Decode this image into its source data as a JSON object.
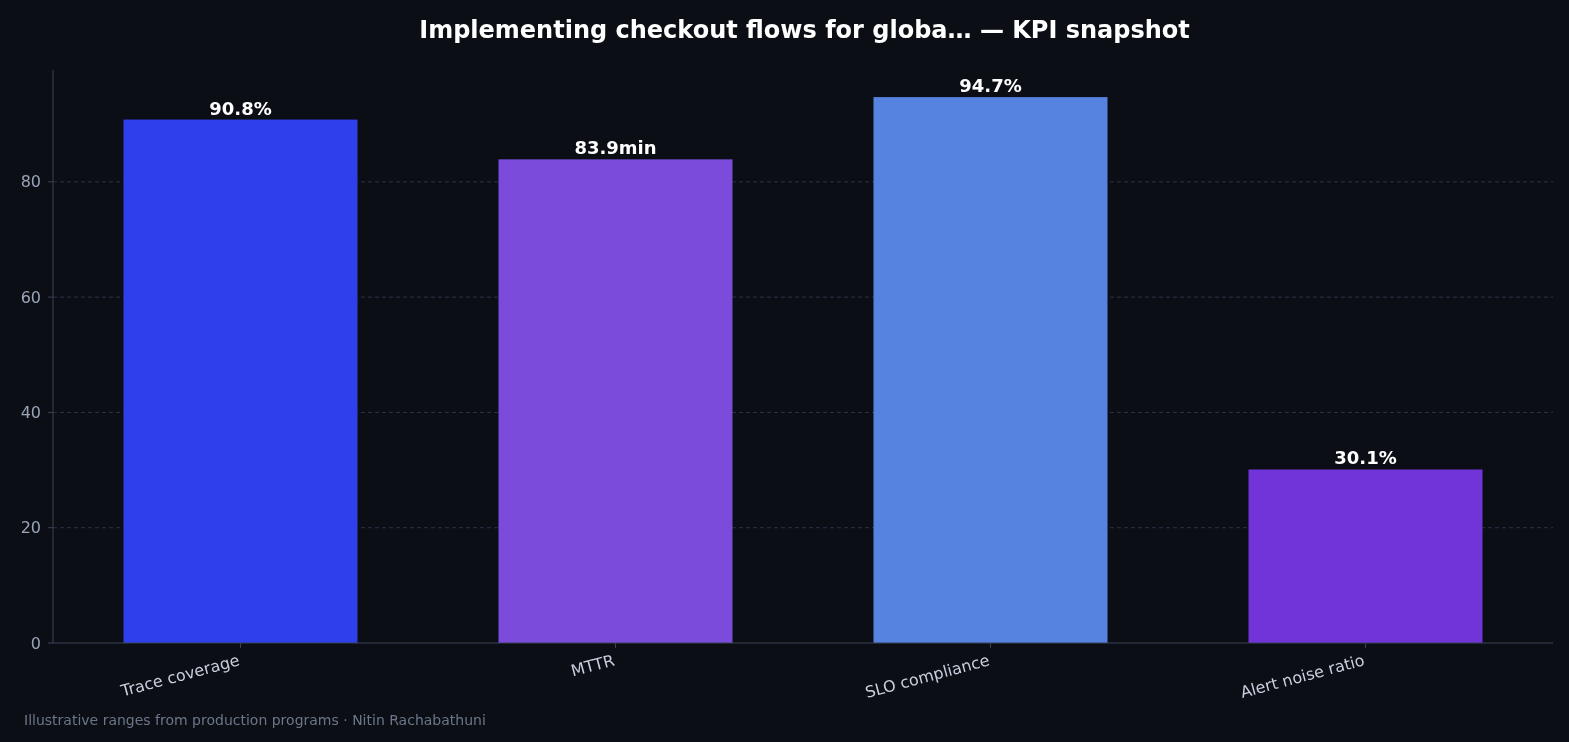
{
  "chart_data": {
    "type": "bar",
    "title": "Implementing checkout flows for globa… — KPI snapshot",
    "categories": [
      "Trace coverage",
      "MTTR",
      "SLO compliance",
      "Alert noise ratio"
    ],
    "values": [
      90.8,
      83.9,
      94.7,
      30.1
    ],
    "colors": [
      "#2e40ec",
      "#7b4cdc",
      "#5583df",
      "#7134d8"
    ],
    "value_labels": [
      "90.8%",
      "83.9min",
      "94.7%",
      "30.1%"
    ],
    "ylim": [
      0,
      99.4
    ],
    "yticks": [
      0,
      20,
      40,
      60,
      80
    ],
    "grid": "y",
    "annotations": [
      "Illustrative ranges from production programs · Nitin Rachabathuni"
    ]
  }
}
